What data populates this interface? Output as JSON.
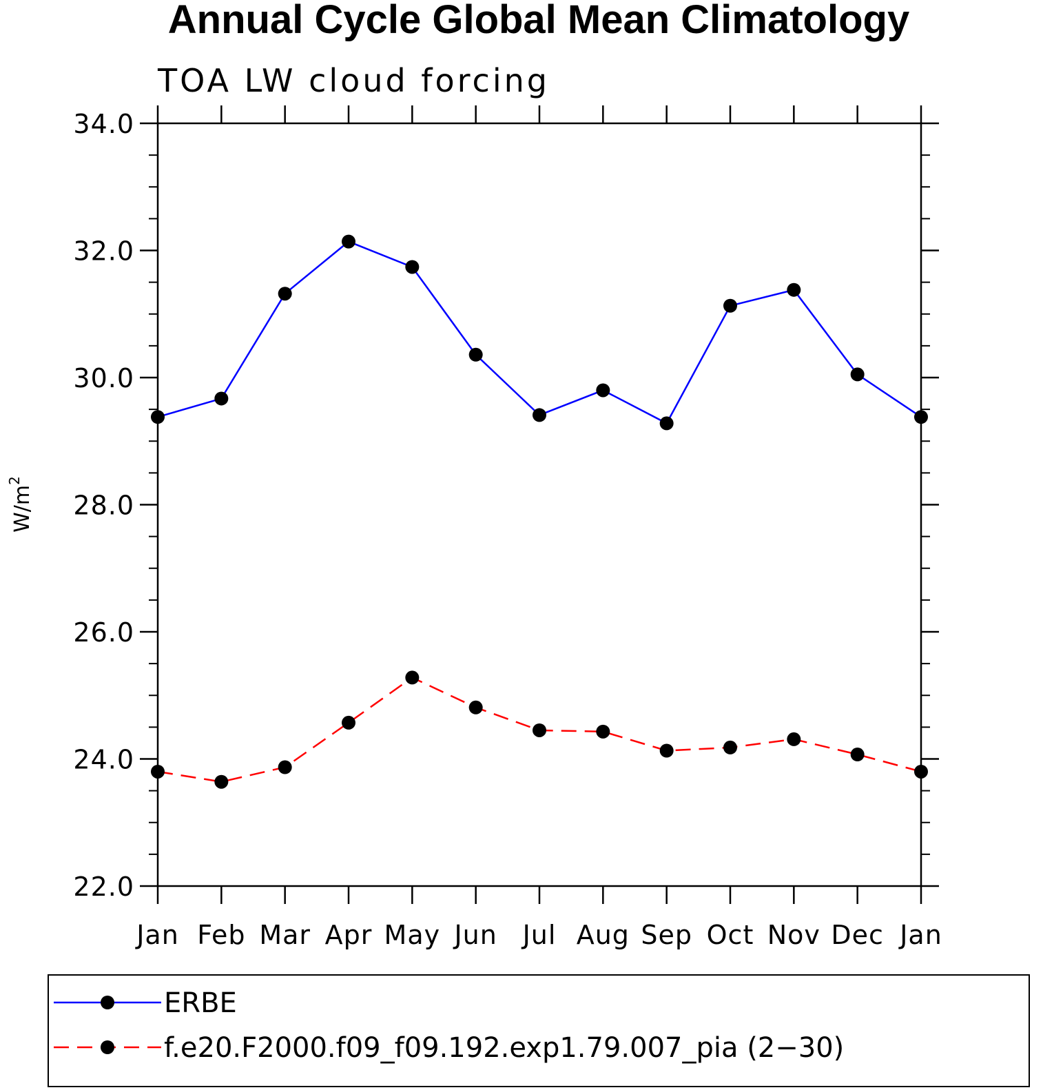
{
  "chart_data": {
    "type": "line",
    "title": "Annual Cycle Global Mean Climatology",
    "subtitle": "TOA LW cloud forcing",
    "ylabel": "W/m",
    "ylabel_superscript": "2",
    "xlabel": "",
    "categories": [
      "Jan",
      "Feb",
      "Mar",
      "Apr",
      "May",
      "Jun",
      "Jul",
      "Aug",
      "Sep",
      "Oct",
      "Nov",
      "Dec",
      "Jan"
    ],
    "ylim": [
      22.0,
      34.0
    ],
    "yticks": [
      "22.0",
      "24.0",
      "26.0",
      "28.0",
      "30.0",
      "32.0",
      "34.0"
    ],
    "grid": false,
    "legend_position": "bottom",
    "series": [
      {
        "name": "ERBE",
        "color": "#0000ff",
        "line_style": "solid",
        "marker": "filled-circle",
        "values": [
          29.38,
          29.67,
          31.32,
          32.14,
          31.74,
          30.36,
          29.41,
          29.8,
          29.28,
          31.13,
          31.38,
          30.05,
          29.38
        ]
      },
      {
        "name": "f.e20.F2000.f09_f09.192.exp1.79.007_pia (2−30)",
        "color": "#ff0000",
        "line_style": "dashed",
        "marker": "filled-circle",
        "values": [
          23.8,
          23.64,
          23.87,
          24.57,
          25.28,
          24.81,
          24.45,
          24.43,
          24.13,
          24.18,
          24.31,
          24.07,
          23.8
        ]
      }
    ]
  }
}
